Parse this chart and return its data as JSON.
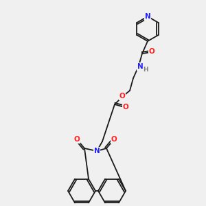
{
  "bg_color": "#f0f0f0",
  "bond_color": "#1a1a1a",
  "atom_colors": {
    "N": "#2020ff",
    "O": "#ff2020",
    "H": "#808080",
    "C": "#1a1a1a"
  },
  "font_size_atom": 7.5,
  "font_size_H": 6.5,
  "line_width": 1.3
}
